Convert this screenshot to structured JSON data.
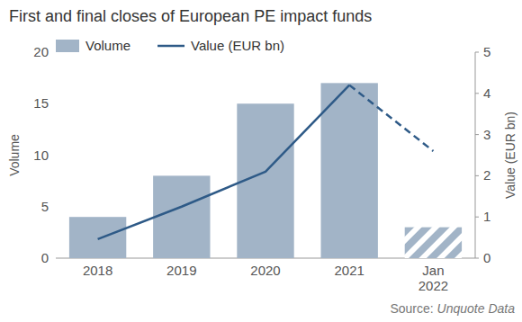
{
  "chart_data": {
    "type": "bar",
    "title": "First and final closes of European PE impact funds",
    "source": "Source: Unquote Data",
    "categories": [
      "2018",
      "2019",
      "2020",
      "2021",
      "Jan 2022"
    ],
    "y_label": "Volume",
    "y2_label": "Value (EUR bn)",
    "ylim": [
      0,
      20
    ],
    "yticks": [
      0,
      5,
      10,
      15,
      20
    ],
    "y2lim": [
      0,
      5
    ],
    "y2ticks": [
      0,
      1,
      2,
      3,
      4,
      5
    ],
    "grid": false,
    "legend": "top-left",
    "series": [
      {
        "name": "Volume",
        "type": "bar",
        "color": "#a2b4c7",
        "values": [
          4,
          8,
          15,
          17,
          3
        ]
      },
      {
        "name": "Value (EUR bn)",
        "type": "line",
        "axis": "y2",
        "color": "#2e5a87",
        "line_style": "solid",
        "values": [
          0.46,
          1.25,
          2.1,
          4.2,
          null
        ]
      },
      {
        "type": "line",
        "axis": "y2",
        "color": "#2e5a87",
        "line_style": "dashed",
        "values": [
          null,
          null,
          null,
          4.2,
          2.6
        ]
      }
    ]
  }
}
